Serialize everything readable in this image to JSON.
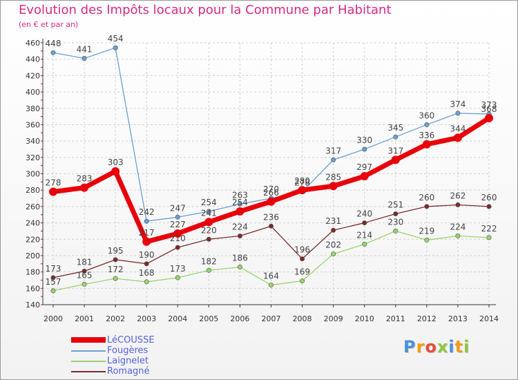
{
  "chart_data": {
    "type": "line",
    "title": "Evolution des Impôts locaux pour la Commune par Habitant",
    "subtitle": "(en € et par an)",
    "categories": [
      "2000",
      "2001",
      "2002",
      "2003",
      "2004",
      "2005",
      "2006",
      "2007",
      "2008",
      "2009",
      "2010",
      "2011",
      "2012",
      "2013",
      "2014"
    ],
    "ylim": [
      140,
      460
    ],
    "yticks": [
      140,
      160,
      180,
      200,
      220,
      240,
      260,
      280,
      300,
      320,
      340,
      360,
      380,
      400,
      420,
      440,
      460
    ],
    "grid": true,
    "legend_position": "bottom-left",
    "series": [
      {
        "name": "LéCOUSSE",
        "color": "#e8000b",
        "values": [
          278,
          283,
          303,
          217,
          227,
          241,
          254,
          266,
          280,
          285,
          297,
          317,
          336,
          344,
          368
        ],
        "labels": [
          "278",
          "283",
          "303",
          "217",
          "227",
          "241",
          "254",
          "266",
          "280",
          "285",
          "297",
          "317",
          "336",
          "344",
          "368"
        ]
      },
      {
        "name": "Fougères",
        "color": "#6a9fd4",
        "values": [
          448,
          441,
          454,
          242,
          247,
          254,
          263,
          270,
          278,
          317,
          330,
          345,
          360,
          374,
          373
        ],
        "labels": [
          "448",
          "441",
          "454",
          "242",
          "247",
          "254",
          "263",
          "270",
          "278",
          "317",
          "330",
          "345",
          "360",
          "374",
          "373"
        ]
      },
      {
        "name": "Laignelet",
        "color": "#99d36d",
        "values": [
          157,
          165,
          172,
          168,
          173,
          182,
          186,
          164,
          169,
          202,
          214,
          230,
          219,
          224,
          222
        ],
        "labels": [
          "157",
          "165",
          "172",
          "168",
          "173",
          "182",
          "186",
          "164",
          "169",
          "202",
          "214",
          "230",
          "219",
          "224",
          "222"
        ]
      },
      {
        "name": "Romagné",
        "color": "#7a2a2a",
        "values": [
          173,
          181,
          195,
          190,
          210,
          220,
          224,
          236,
          196,
          231,
          240,
          251,
          260,
          262,
          260
        ],
        "labels": [
          "173",
          "181",
          "195",
          "190",
          "210",
          "220",
          "224",
          "236",
          "196",
          "231",
          "240",
          "251",
          "260",
          "262",
          "260"
        ]
      }
    ]
  },
  "logo": {
    "letters": [
      "P",
      "r",
      "o",
      "x",
      "i",
      "t",
      "i"
    ],
    "colors": [
      "#4a90d9",
      "#f39c12",
      "#e74c3c",
      "#8cc63f",
      "#4a90d9",
      "#f39c12",
      "#8cc63f"
    ]
  }
}
